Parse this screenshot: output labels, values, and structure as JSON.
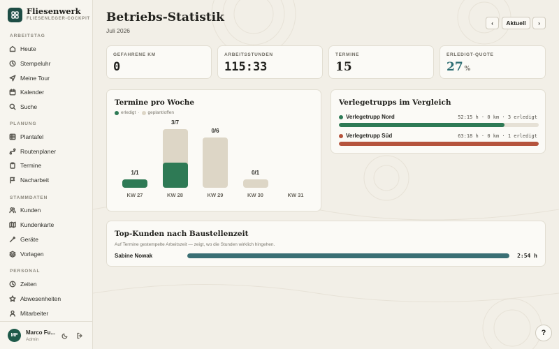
{
  "app": {
    "name": "Fliesenwerk",
    "subtitle": "FLIESENLEGER-COCKPIT"
  },
  "sidebar": {
    "sections": [
      {
        "label": "ARBEITSTAG",
        "items": [
          {
            "label": "Heute",
            "icon": "home-icon"
          },
          {
            "label": "Stempeluhr",
            "icon": "clock-icon"
          },
          {
            "label": "Meine Tour",
            "icon": "send-icon"
          },
          {
            "label": "Kalender",
            "icon": "calendar-icon"
          },
          {
            "label": "Suche",
            "icon": "search-icon"
          }
        ]
      },
      {
        "label": "PLANUNG",
        "items": [
          {
            "label": "Plantafel",
            "icon": "grid-icon"
          },
          {
            "label": "Routenplaner",
            "icon": "route-icon"
          },
          {
            "label": "Termine",
            "icon": "clipboard-icon"
          },
          {
            "label": "Nacharbeit",
            "icon": "flag-icon"
          }
        ]
      },
      {
        "label": "STAMMDATEN",
        "items": [
          {
            "label": "Kunden",
            "icon": "users-icon"
          },
          {
            "label": "Kundenkarte",
            "icon": "map-icon"
          },
          {
            "label": "Geräte",
            "icon": "tool-icon"
          },
          {
            "label": "Vorlagen",
            "icon": "layers-icon"
          }
        ]
      },
      {
        "label": "PERSONAL",
        "items": [
          {
            "label": "Zeiten",
            "icon": "clock-icon"
          },
          {
            "label": "Abwesenheiten",
            "icon": "star-icon"
          },
          {
            "label": "Mitarbeiter",
            "icon": "user-icon"
          }
        ]
      }
    ]
  },
  "user": {
    "initials": "MF",
    "name": "Marco Fu...",
    "role": "Admin"
  },
  "header": {
    "title": "Betriebs-Statistik",
    "period": "Juli 2026",
    "prev_label": "‹",
    "current_label": "Aktuell",
    "next_label": "›"
  },
  "kpis": [
    {
      "label": "GEFAHRENE KM",
      "value": "0"
    },
    {
      "label": "ARBEITSSTUNDEN",
      "value": "115:33"
    },
    {
      "label": "TERMINE",
      "value": "15"
    },
    {
      "label": "ERLEDIGT-QUOTE",
      "value": "27",
      "unit": "%"
    }
  ],
  "weekly": {
    "title": "Termine pro Woche",
    "legend_done": "erledigt",
    "legend_sep": "·",
    "legend_planned": "geplant/offen",
    "colors": {
      "done": "#2e7a55",
      "planned": "#ddd6c6"
    }
  },
  "chart_data": {
    "type": "bar",
    "categories": [
      "KW 27",
      "KW 28",
      "KW 29",
      "KW 30",
      "KW 31"
    ],
    "series": [
      {
        "name": "erledigt",
        "values": [
          1,
          3,
          0,
          0,
          0
        ]
      },
      {
        "name": "geplant/offen",
        "values": [
          0,
          4,
          6,
          1,
          0
        ]
      }
    ],
    "data_labels": [
      "1/1",
      "3/7",
      "0/6",
      "0/1",
      ""
    ],
    "ylim": [
      0,
      7
    ]
  },
  "teams": {
    "title": "Verlegetrupps im Vergleich",
    "items": [
      {
        "name": "Verlegetrupp Nord",
        "stat": "52:15 h · 0 km · 3 erledigt",
        "color": "#2e7a55",
        "fraction": 0.83
      },
      {
        "name": "Verlegetrupp Süd",
        "stat": "63:18 h · 0 km · 1 erledigt",
        "color": "#b5533c",
        "fraction": 1.0
      }
    ]
  },
  "top_customers": {
    "title": "Top-Kunden nach Baustellenzeit",
    "subtitle": "Auf Termine gestempelte Arbeitszeit — zeigt, wo die Stunden wirklich hingehen.",
    "items": [
      {
        "name": "Sabine Nowak",
        "value": "2:54 h",
        "fraction": 1.0
      }
    ],
    "color": "#3a6f74"
  },
  "help_label": "?"
}
